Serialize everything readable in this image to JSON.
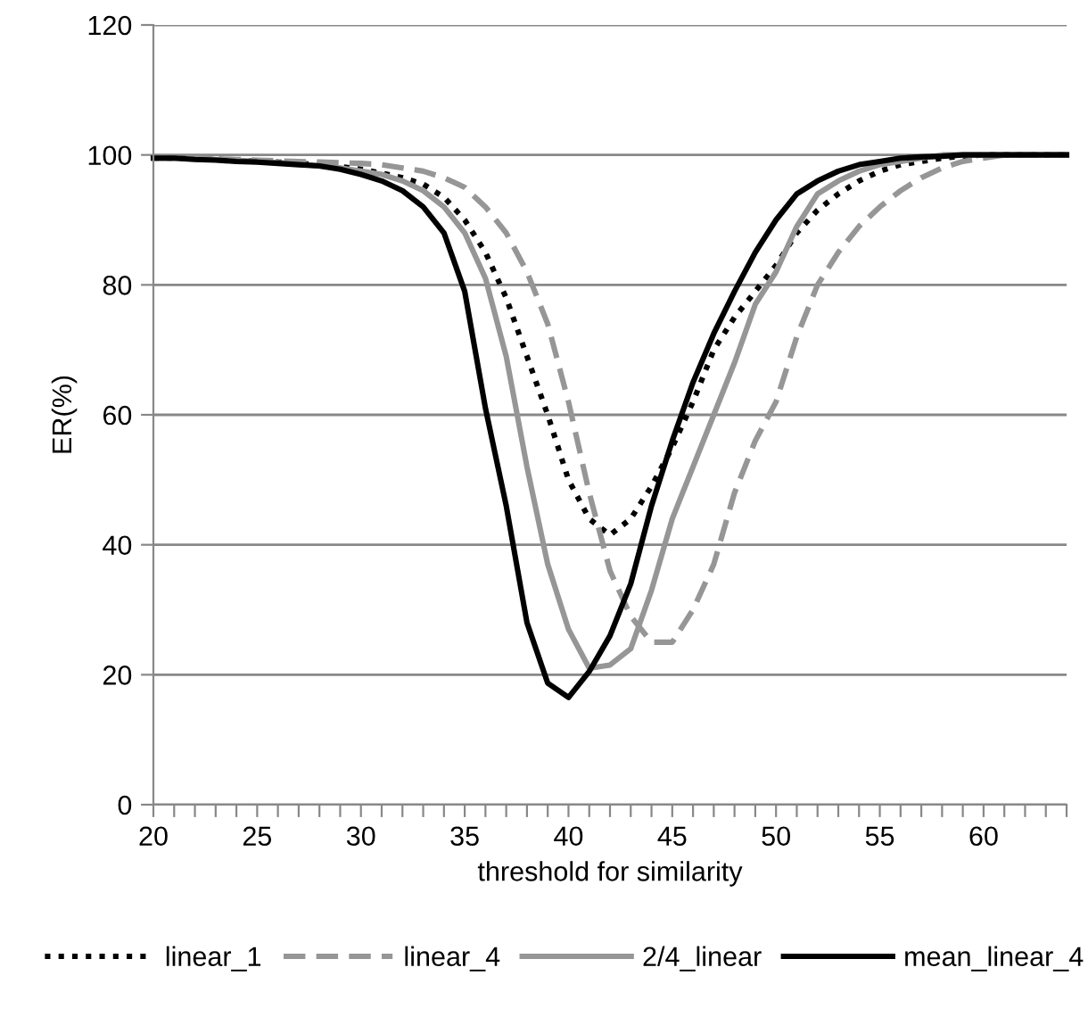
{
  "chart_data": {
    "type": "line",
    "xlabel": "threshold for similarity",
    "ylabel": "ER(%)",
    "x": [
      20,
      21,
      22,
      23,
      24,
      25,
      26,
      27,
      28,
      29,
      30,
      31,
      32,
      33,
      34,
      35,
      36,
      37,
      38,
      39,
      40,
      41,
      42,
      43,
      44,
      45,
      46,
      47,
      48,
      49,
      50,
      51,
      52,
      53,
      54,
      55,
      56,
      57,
      58,
      59,
      60,
      61,
      62,
      63,
      64
    ],
    "series": [
      {
        "name": "linear_1",
        "color": "#000000",
        "line_style": "dotted",
        "values": [
          99.5,
          99.5,
          99.4,
          99.3,
          99.2,
          99,
          98.9,
          98.7,
          98.5,
          98.2,
          97.8,
          97.2,
          96.5,
          95.5,
          93.5,
          90,
          85,
          78,
          69,
          60,
          50,
          44,
          41.5,
          44,
          49,
          55,
          62,
          70,
          75,
          79,
          83,
          88,
          91.5,
          94,
          96,
          97.5,
          98.5,
          99,
          99.5,
          99.8,
          100,
          100,
          100,
          100,
          100
        ]
      },
      {
        "name": "linear_4",
        "color": "#969696",
        "line_style": "dashed",
        "values": [
          99.5,
          99.5,
          99.5,
          99.4,
          99.3,
          99.2,
          99.1,
          99,
          98.9,
          98.8,
          98.7,
          98.5,
          98,
          97.5,
          96.5,
          95,
          92,
          88,
          82,
          74,
          62,
          48,
          36,
          29,
          25,
          25,
          30,
          37,
          48,
          56,
          62,
          72,
          80,
          85,
          89,
          92,
          94.5,
          96.5,
          98,
          99,
          99.5,
          100,
          100,
          100,
          100
        ]
      },
      {
        "name": "2/4_linear",
        "color": "#969696",
        "line_style": "solid",
        "values": [
          99.5,
          99.5,
          99.4,
          99.3,
          99.2,
          99,
          98.8,
          98.6,
          98.3,
          98,
          97.5,
          97,
          96,
          94.5,
          92,
          88,
          81,
          69,
          52,
          37,
          27,
          21,
          21.5,
          24,
          33,
          44,
          52,
          60,
          68,
          77,
          82,
          89,
          94,
          96,
          97.5,
          98.5,
          99,
          99.5,
          100,
          100,
          100,
          100,
          100,
          100,
          100
        ]
      },
      {
        "name": "mean_linear_4",
        "color": "#000000",
        "line_style": "solid",
        "values": [
          99.5,
          99.5,
          99.3,
          99.2,
          99,
          98.9,
          98.7,
          98.5,
          98.3,
          97.8,
          97,
          96,
          94.5,
          92,
          88,
          79,
          61,
          46,
          28,
          18.7,
          16.5,
          20.5,
          26,
          34,
          46,
          56,
          65,
          72.5,
          79,
          85,
          90,
          94,
          96,
          97.5,
          98.5,
          99,
          99.5,
          99.7,
          99.8,
          100,
          100,
          100,
          100,
          100,
          100
        ]
      }
    ],
    "xlim": [
      20,
      64
    ],
    "xticks": [
      20,
      {
        "value": 21,
        "label": null
      },
      {
        "value": 22,
        "label": null
      },
      {
        "value": 23,
        "label": null
      },
      {
        "value": 24,
        "label": null
      },
      25,
      {
        "value": 26,
        "label": null
      },
      {
        "value": 27,
        "label": null
      },
      {
        "value": 28,
        "label": null
      },
      {
        "value": 29,
        "label": null
      },
      30,
      {
        "value": 31,
        "label": null
      },
      {
        "value": 32,
        "label": null
      },
      {
        "value": 33,
        "label": null
      },
      {
        "value": 34,
        "label": null
      },
      35,
      {
        "value": 36,
        "label": null
      },
      {
        "value": 37,
        "label": null
      },
      {
        "value": 38,
        "label": null
      },
      {
        "value": 39,
        "label": null
      },
      40,
      {
        "value": 41,
        "label": null
      },
      {
        "value": 42,
        "label": null
      },
      {
        "value": 43,
        "label": null
      },
      {
        "value": 44,
        "label": null
      },
      45,
      {
        "value": 46,
        "label": null
      },
      {
        "value": 47,
        "label": null
      },
      {
        "value": 48,
        "label": null
      },
      {
        "value": 49,
        "label": null
      },
      50,
      {
        "value": 51,
        "label": null
      },
      {
        "value": 52,
        "label": null
      },
      {
        "value": 53,
        "label": null
      },
      {
        "value": 54,
        "label": null
      },
      55,
      {
        "value": 56,
        "label": null
      },
      {
        "value": 57,
        "label": null
      },
      {
        "value": 58,
        "label": null
      },
      {
        "value": 59,
        "label": null
      },
      60,
      {
        "value": 61,
        "label": null
      },
      {
        "value": 62,
        "label": null
      },
      {
        "value": 63,
        "label": null
      },
      {
        "value": 64,
        "label": null
      }
    ],
    "ylim": [
      0,
      120
    ],
    "yticks": [
      0,
      20,
      40,
      60,
      80,
      100,
      120
    ],
    "grid": "y",
    "legend": "bottom",
    "marker": "none"
  }
}
